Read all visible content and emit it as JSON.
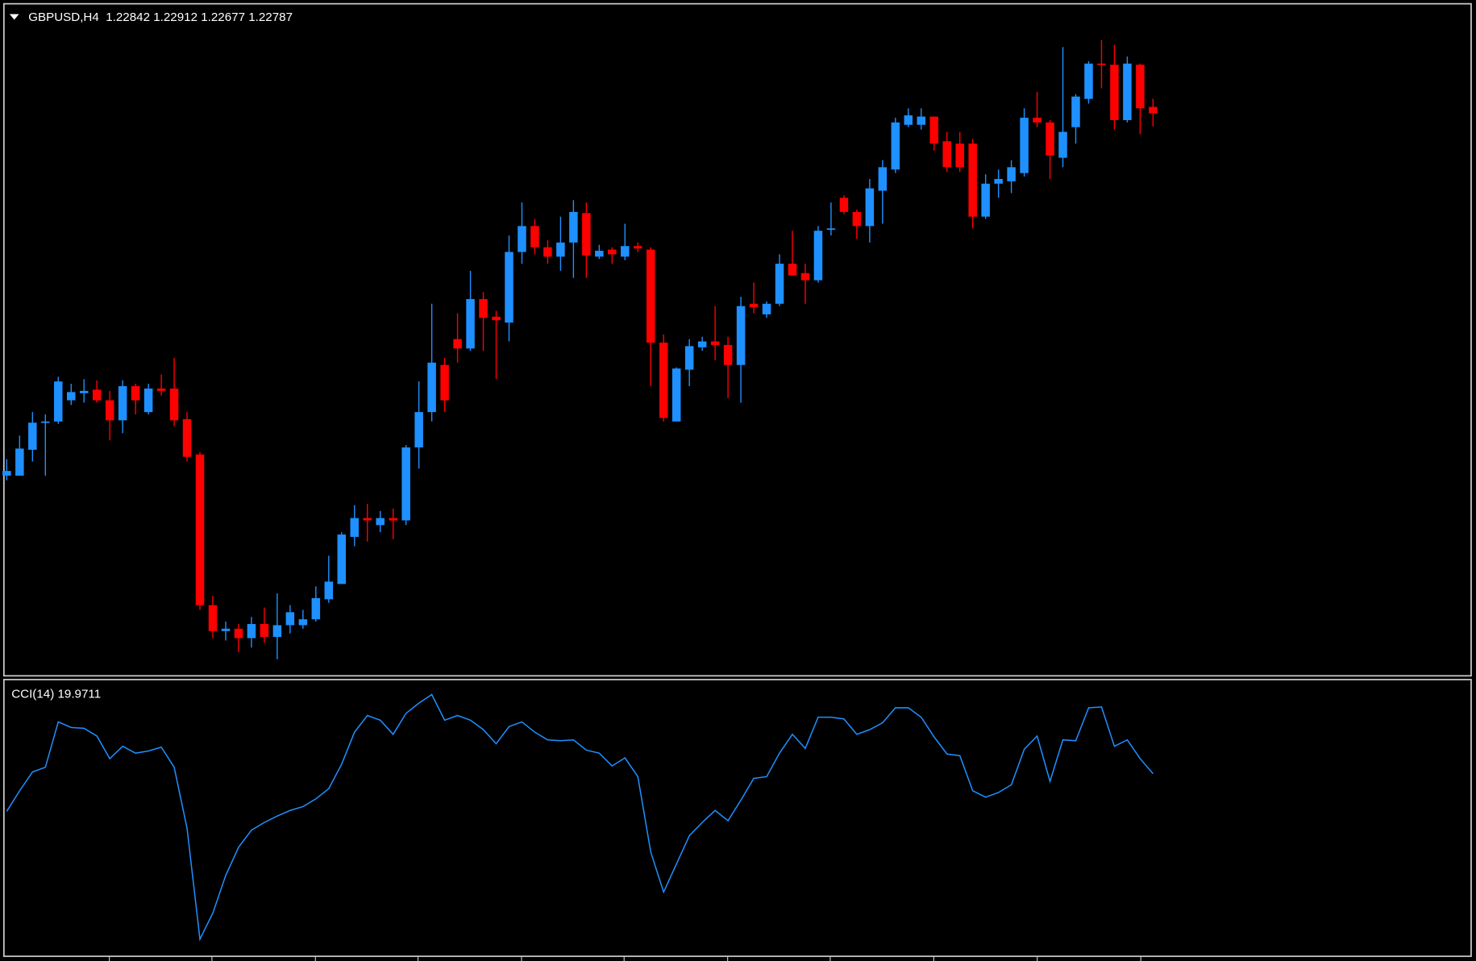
{
  "chart_data": [
    {
      "type": "candlestick",
      "title": "GBPUSD,H4  1.22842 1.22912 1.22677 1.22787",
      "ylim": [
        1.1801,
        1.2371
      ],
      "up_color": "#1e90ff",
      "down_color": "#ff0000",
      "open": [
        1.1971,
        1.1971,
        1.1993,
        1.2016,
        1.2017,
        1.2035,
        1.2041,
        1.2044,
        1.2035,
        1.2018,
        1.2047,
        1.2025,
        1.2045,
        1.2045,
        1.2019,
        1.1989,
        1.1861,
        1.1839,
        1.1841,
        1.1833,
        1.1845,
        1.1834,
        1.1844,
        1.1844,
        1.1849,
        1.1866,
        1.1879,
        1.1919,
        1.1935,
        1.1929,
        1.1935,
        1.1933,
        1.1995,
        1.2025,
        1.2065,
        1.2087,
        1.2079,
        1.2121,
        1.2106,
        1.2101,
        1.2161,
        1.2183,
        1.2165,
        1.2157,
        1.2169,
        1.2194,
        1.2157,
        1.2163,
        1.2157,
        1.2166,
        1.2163,
        1.2084,
        1.2017,
        1.2061,
        1.208,
        1.2085,
        1.2082,
        1.2065,
        1.2117,
        1.2108,
        1.2117,
        1.2151,
        1.2143,
        1.2137,
        1.218,
        1.2207,
        1.2195,
        1.2183,
        1.2213,
        1.2231,
        1.2269,
        1.2269,
        1.2276,
        1.2255,
        1.2253,
        1.2253,
        1.2191,
        1.2219,
        1.2221,
        1.2228,
        1.2275,
        1.2271,
        1.2241,
        1.2267,
        1.2291,
        1.2321,
        1.232,
        1.2273,
        1.232,
        1.22842
      ],
      "high": [
        1.1985,
        1.2005,
        1.2025,
        1.2023,
        1.2055,
        1.2049,
        1.2053,
        1.2052,
        1.2043,
        1.2052,
        1.2049,
        1.2049,
        1.2057,
        1.2071,
        1.2025,
        1.1991,
        1.1869,
        1.1847,
        1.1845,
        1.1851,
        1.1859,
        1.1871,
        1.1861,
        1.1857,
        1.1877,
        1.1903,
        1.1923,
        1.1946,
        1.1947,
        1.1941,
        1.1943,
        1.1997,
        1.2051,
        1.2117,
        1.2071,
        1.2109,
        1.2145,
        1.2127,
        1.2111,
        1.2175,
        1.2203,
        1.2189,
        1.2171,
        1.2191,
        1.2205,
        1.2203,
        1.2167,
        1.2165,
        1.2185,
        1.2169,
        1.2165,
        1.2091,
        1.2063,
        1.2087,
        1.2089,
        1.2115,
        1.2089,
        1.2123,
        1.2135,
        1.2119,
        1.2159,
        1.2179,
        1.2151,
        1.2183,
        1.2203,
        1.2209,
        1.2197,
        1.2223,
        1.2239,
        1.2275,
        1.2283,
        1.2283,
        1.2276,
        1.2263,
        1.2263,
        1.2257,
        1.2227,
        1.2231,
        1.2239,
        1.2283,
        1.2297,
        1.2273,
        1.2335,
        1.2295,
        1.2323,
        1.2341,
        1.2337,
        1.2327,
        1.2321,
        1.22912
      ],
      "low": [
        1.1967,
        1.1971,
        1.1983,
        1.1971,
        1.2015,
        1.2031,
        1.2033,
        1.2033,
        1.2001,
        1.2007,
        1.2023,
        1.2023,
        1.2039,
        1.2013,
        1.1983,
        1.1857,
        1.1833,
        1.1831,
        1.1821,
        1.1825,
        1.1829,
        1.1815,
        1.1837,
        1.1841,
        1.1847,
        1.1863,
        1.1879,
        1.1911,
        1.1915,
        1.1923,
        1.1917,
        1.1929,
        1.1977,
        1.2017,
        1.2025,
        1.2067,
        1.2077,
        1.2077,
        1.2053,
        1.2085,
        1.2151,
        1.2159,
        1.2151,
        1.2145,
        1.2139,
        1.2139,
        1.2155,
        1.2151,
        1.2154,
        1.2161,
        1.2047,
        1.2017,
        1.2017,
        1.2047,
        1.2077,
        1.2069,
        1.2037,
        1.2033,
        1.2109,
        1.2105,
        1.2115,
        1.2141,
        1.2117,
        1.2135,
        1.2175,
        1.2193,
        1.2172,
        1.2169,
        1.2185,
        1.2228,
        1.2267,
        1.2265,
        1.2247,
        1.2229,
        1.2229,
        1.2181,
        1.2189,
        1.2207,
        1.2211,
        1.2225,
        1.2267,
        1.2223,
        1.2233,
        1.2253,
        1.2287,
        1.23,
        1.2265,
        1.2271,
        1.2261,
        1.22677
      ],
      "close": [
        1.1975,
        1.1994,
        1.2016,
        1.2017,
        1.2051,
        1.2042,
        1.2043,
        1.2035,
        1.2018,
        1.2047,
        1.2035,
        1.2045,
        1.2043,
        1.2018,
        1.1987,
        1.1861,
        1.1839,
        1.1841,
        1.1833,
        1.1845,
        1.1834,
        1.1844,
        1.1855,
        1.1849,
        1.1867,
        1.1881,
        1.1921,
        1.1935,
        1.1933,
        1.1935,
        1.1933,
        1.1995,
        1.2025,
        1.2067,
        1.2035,
        1.2079,
        1.2121,
        1.2105,
        1.2103,
        1.2161,
        1.2183,
        1.2165,
        1.2157,
        1.2169,
        1.2195,
        1.2158,
        1.2162,
        1.2159,
        1.2166,
        1.2164,
        1.2084,
        1.202,
        1.2062,
        1.2081,
        1.2085,
        1.2082,
        1.2065,
        1.2115,
        1.2114,
        1.2117,
        1.2151,
        1.2141,
        1.2137,
        1.2179,
        1.2181,
        1.2195,
        1.2183,
        1.2215,
        1.2233,
        1.2271,
        1.2277,
        1.2276,
        1.2253,
        1.2233,
        1.2233,
        1.2191,
        1.2219,
        1.2223,
        1.2233,
        1.2275,
        1.2271,
        1.2243,
        1.2263,
        1.2293,
        1.2321,
        1.232,
        1.2273,
        1.2321,
        1.2283,
        1.22787
      ]
    },
    {
      "type": "line",
      "title": "CCI(14) 19.9711",
      "ylim": [
        -407,
        240
      ],
      "color": "#1e90ff",
      "values": [
        -68,
        -20,
        24,
        35,
        141,
        128,
        126,
        108,
        55,
        84,
        68,
        73,
        82,
        35,
        -108,
        -367,
        -306,
        -218,
        -152,
        -112,
        -94,
        -79,
        -66,
        -57,
        -39,
        -15,
        42,
        117,
        156,
        145,
        112,
        161,
        185,
        205,
        145,
        156,
        145,
        123,
        90,
        130,
        141,
        117,
        99,
        97,
        99,
        75,
        68,
        38,
        57,
        13,
        -163,
        -257,
        -191,
        -125,
        -94,
        -66,
        -90,
        -42,
        9,
        13,
        68,
        112,
        79,
        152,
        152,
        148,
        112,
        123,
        139,
        174,
        174,
        152,
        106,
        66,
        62,
        -20,
        -35,
        -24,
        -6,
        77,
        108,
        2,
        99,
        97,
        174,
        176,
        84,
        99,
        55,
        19.9711
      ]
    }
  ]
}
